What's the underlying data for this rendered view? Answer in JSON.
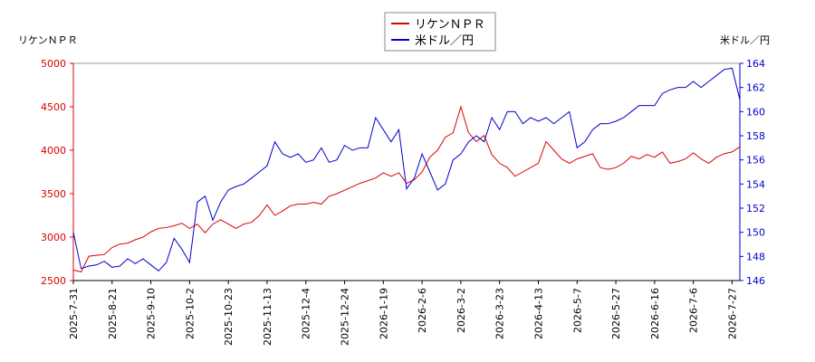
{
  "chart_data": {
    "type": "line",
    "y_label": "リケンＮＰＲ",
    "y2_label": "米ドル／円",
    "categories": [
      "2025-7-31",
      null,
      null,
      null,
      null,
      "2025-8-21",
      null,
      null,
      null,
      null,
      "2025-9-10",
      null,
      null,
      null,
      null,
      "2025-10-2",
      null,
      null,
      null,
      null,
      "2025-10-23",
      null,
      null,
      null,
      null,
      "2025-11-13",
      null,
      null,
      null,
      null,
      "2025-12-4",
      null,
      null,
      null,
      null,
      "2025-12-24",
      null,
      null,
      null,
      null,
      "2026-1-19",
      null,
      null,
      null,
      null,
      "2026-2-6",
      null,
      null,
      null,
      null,
      "2026-3-2",
      null,
      null,
      null,
      null,
      "2026-3-23",
      null,
      null,
      null,
      null,
      "2026-4-13",
      null,
      null,
      null,
      null,
      "2026-5-7",
      null,
      null,
      null,
      null,
      "2026-5-27",
      null,
      null,
      null,
      null,
      "2026-6-16",
      null,
      null,
      null,
      null,
      "2026-7-6",
      null,
      null,
      null,
      null,
      "2026-7-27",
      null
    ],
    "series": [
      {
        "name": "リケンＮＰＲ",
        "color": "#dd0000",
        "values": [
          2620,
          2600,
          2780,
          2790,
          2800,
          2880,
          2920,
          2930,
          2970,
          3000,
          3060,
          3100,
          3110,
          3130,
          3160,
          3100,
          3150,
          3050,
          3150,
          3200,
          3150,
          3100,
          3150,
          3170,
          3250,
          3370,
          3250,
          3300,
          3360,
          3380,
          3380,
          3400,
          3380,
          3470,
          3500,
          3540,
          3580,
          3620,
          3650,
          3680,
          3740,
          3700,
          3740,
          3620,
          3660,
          3750,
          3920,
          4000,
          4150,
          4200,
          4500,
          4200,
          4100,
          4170,
          3950,
          3850,
          3800,
          3700,
          3750,
          3800,
          3850,
          4100,
          4000,
          3900,
          3850,
          3900,
          3930,
          3960,
          3800,
          3780,
          3800,
          3850,
          3930,
          3900,
          3950,
          3920,
          3980,
          3850,
          3870,
          3900,
          3970,
          3900,
          3850,
          3920,
          3960,
          3980,
          4040
        ]
      },
      {
        "name": "米ドル／円",
        "color": "#0000cc",
        "axis": "y2",
        "values": [
          150,
          147,
          147.2,
          147.3,
          147.6,
          147.1,
          147.2,
          147.8,
          147.4,
          147.8,
          147.3,
          146.8,
          147.5,
          149.5,
          148.6,
          147.5,
          152.5,
          153,
          151,
          152.5,
          153.5,
          153.8,
          154,
          154.5,
          155,
          155.5,
          157.5,
          156.5,
          156.2,
          156.5,
          155.8,
          156,
          157,
          155.8,
          156,
          157.2,
          156.8,
          157,
          157,
          159.5,
          158.5,
          157.5,
          158.5,
          153.6,
          154.5,
          156.5,
          155,
          153.5,
          154,
          156,
          156.5,
          157.5,
          158,
          157.5,
          159.5,
          158.5,
          160,
          160,
          159,
          159.5,
          159.2,
          159.5,
          159,
          159.5,
          160,
          157,
          157.5,
          158.5,
          159,
          159,
          159.2,
          159.5,
          160,
          160.5,
          160.5,
          160.5,
          161.5,
          161.8,
          162,
          162,
          162.5,
          162,
          162.5,
          163,
          163.5,
          163.6,
          161
        ]
      }
    ],
    "ylim": [
      2500,
      5000
    ],
    "yticks": [
      2500,
      3000,
      3500,
      4000,
      4500,
      5000
    ],
    "y2lim": [
      146,
      164
    ],
    "y2ticks": [
      146,
      148,
      150,
      152,
      154,
      156,
      158,
      160,
      162,
      164
    ],
    "grid": false
  }
}
